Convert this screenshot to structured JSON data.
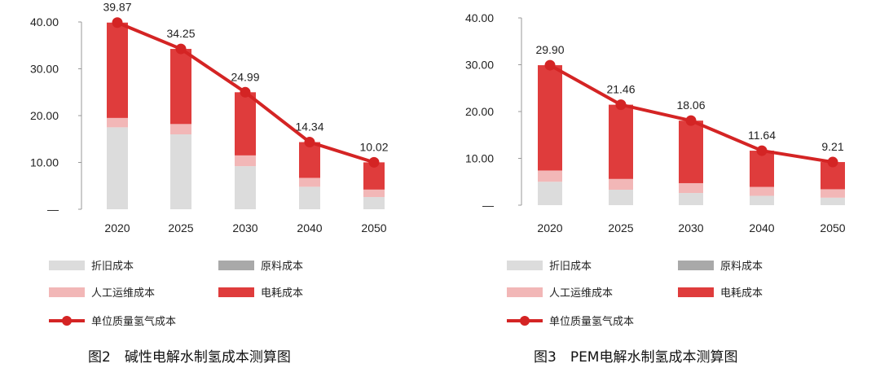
{
  "colors": {
    "depreciation": "#dcdcdc",
    "raw_material": "#a9a9a9",
    "labor": "#f2b7b7",
    "electricity": "#df3c3c",
    "line": "#d42424",
    "axis": "#999999"
  },
  "chart_data": [
    {
      "type": "bar",
      "stacked": true,
      "caption": "图2　碱性电解水制氢成本测算图",
      "categories": [
        "2020",
        "2025",
        "2030",
        "2040",
        "2050"
      ],
      "ylim": [
        0,
        40
      ],
      "yticks": [
        "—",
        "10.00",
        "20.00",
        "30.00",
        "40.00"
      ],
      "series": [
        {
          "name": "折旧成本",
          "values": [
            17.5,
            16.0,
            9.2,
            4.8,
            2.6
          ]
        },
        {
          "name": "原料成本",
          "values": [
            0,
            0,
            0,
            0,
            0
          ]
        },
        {
          "name": "人工运维成本",
          "values": [
            2.0,
            2.2,
            2.3,
            1.9,
            1.6
          ]
        },
        {
          "name": "电耗成本",
          "values": [
            20.37,
            16.05,
            13.49,
            7.64,
            5.82
          ]
        }
      ],
      "line": {
        "name": "单位质量氢气成本",
        "values": [
          39.87,
          34.25,
          24.99,
          14.34,
          10.02
        ]
      },
      "data_labels": [
        "39.87",
        "34.25",
        "24.99",
        "14.34",
        "10.02"
      ],
      "legend": [
        "折旧成本",
        "原料成本",
        "人工运维成本",
        "电耗成本",
        "单位质量氢气成本"
      ],
      "legend_position": "bottom",
      "grid": false
    },
    {
      "type": "bar",
      "stacked": true,
      "caption": "图3　PEM电解水制氢成本测算图",
      "categories": [
        "2020",
        "2025",
        "2030",
        "2040",
        "2050"
      ],
      "ylim": [
        0,
        40
      ],
      "yticks": [
        "—",
        "10.00",
        "20.00",
        "30.00",
        "40.00"
      ],
      "series": [
        {
          "name": "折旧成本",
          "values": [
            5.0,
            3.3,
            2.6,
            2.0,
            1.6
          ]
        },
        {
          "name": "原料成本",
          "values": [
            0,
            0,
            0,
            0,
            0
          ]
        },
        {
          "name": "人工运维成本",
          "values": [
            2.4,
            2.3,
            2.1,
            1.9,
            1.8
          ]
        },
        {
          "name": "电耗成本",
          "values": [
            22.5,
            15.86,
            13.36,
            7.74,
            5.81
          ]
        }
      ],
      "line": {
        "name": "单位质量氢气成本",
        "values": [
          29.9,
          21.46,
          18.06,
          11.64,
          9.21
        ]
      },
      "data_labels": [
        "29.90",
        "21.46",
        "18.06",
        "11.64",
        "9.21"
      ],
      "legend": [
        "折旧成本",
        "原料成本",
        "人工运维成本",
        "电耗成本",
        "单位质量氢气成本"
      ],
      "legend_position": "bottom",
      "grid": false
    }
  ]
}
